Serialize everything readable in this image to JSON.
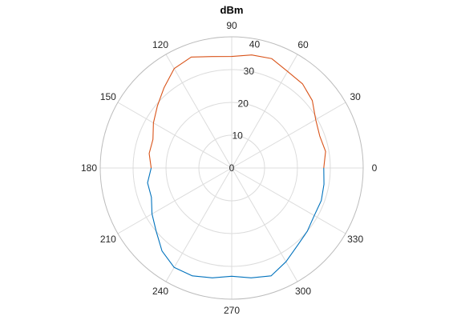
{
  "chart_data": {
    "type": "line",
    "subtype": "polar",
    "title": "dBm",
    "theta_ticks": [
      "0",
      "30",
      "60",
      "90",
      "120",
      "150",
      "180",
      "210",
      "240",
      "270",
      "300",
      "330"
    ],
    "theta_tick_values": [
      0,
      30,
      60,
      90,
      120,
      150,
      180,
      210,
      240,
      270,
      300,
      330
    ],
    "r_ticks": [
      "0",
      "10",
      "20",
      "30",
      "40"
    ],
    "r_tick_values": [
      0,
      10,
      20,
      30,
      40
    ],
    "rlim": [
      0,
      40
    ],
    "r_tick_label_angle_deg": 80,
    "theta_zero": "right",
    "theta_direction": "counterclockwise",
    "grid": true,
    "series": [
      {
        "color": "#0072bd",
        "theta": [
          180,
          190,
          200,
          210,
          220,
          230,
          240,
          250,
          260,
          270,
          280,
          290,
          300,
          310,
          320,
          330,
          340,
          350,
          360
        ],
        "r": [
          24.5,
          26,
          26,
          28,
          30,
          33,
          35,
          35,
          34,
          33,
          34,
          35,
          33,
          31,
          30,
          29,
          29,
          28.5,
          28
        ]
      },
      {
        "color": "#d95319",
        "theta": [
          0,
          10,
          20,
          30,
          40,
          50,
          60,
          70,
          80,
          90,
          100,
          110,
          120,
          130,
          140,
          150,
          160,
          170,
          180
        ],
        "r": [
          28,
          29,
          28.5,
          29.5,
          32,
          33.5,
          34,
          35.5,
          35,
          34,
          34.5,
          36,
          35,
          32,
          29.5,
          27.5,
          25.5,
          25.5,
          24.5
        ]
      }
    ]
  }
}
